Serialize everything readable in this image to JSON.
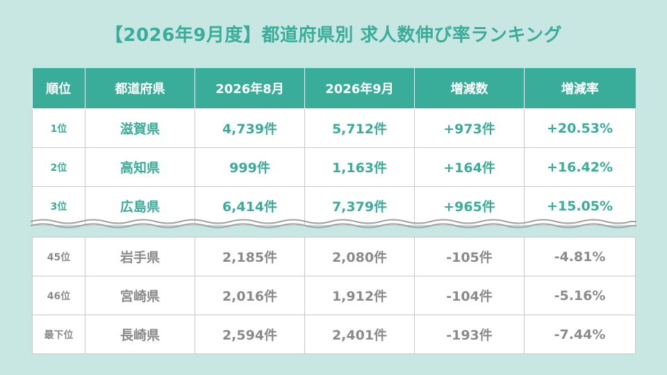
{
  "title": "【2026年9月度】都道府県別 求人数伸び率ランキング",
  "headers": [
    "順位",
    "都道府県",
    "2026年8月",
    "2026年9月",
    "増減数",
    "増減率"
  ],
  "top_rows": [
    [
      "1位",
      "滋賀県",
      "4,739件",
      "5,712件",
      "+973件",
      "+20.53%"
    ],
    [
      "2位",
      "高知県",
      "999件",
      "1,163件",
      "+164件",
      "+16.42%"
    ],
    [
      "3位",
      "広島県",
      "6,414件",
      "7,379件",
      "+965件",
      "+15.05%"
    ]
  ],
  "bottom_rows": [
    [
      "45位",
      "岩手県",
      "2,185件",
      "2,080件",
      "-105件",
      "-4.81%"
    ],
    [
      "46位",
      "宮崎県",
      "2,016件",
      "1,912件",
      "-104件",
      "-5.16%"
    ],
    [
      "最下位",
      "長崎県",
      "2,594件",
      "2,401件",
      "-193件",
      "-7.44%"
    ]
  ],
  "colors": {
    "background": "#c9e7e2",
    "accent": "#3aad9a",
    "muted_text": "#8a8a8a",
    "break_line": "#a0a0a0"
  }
}
